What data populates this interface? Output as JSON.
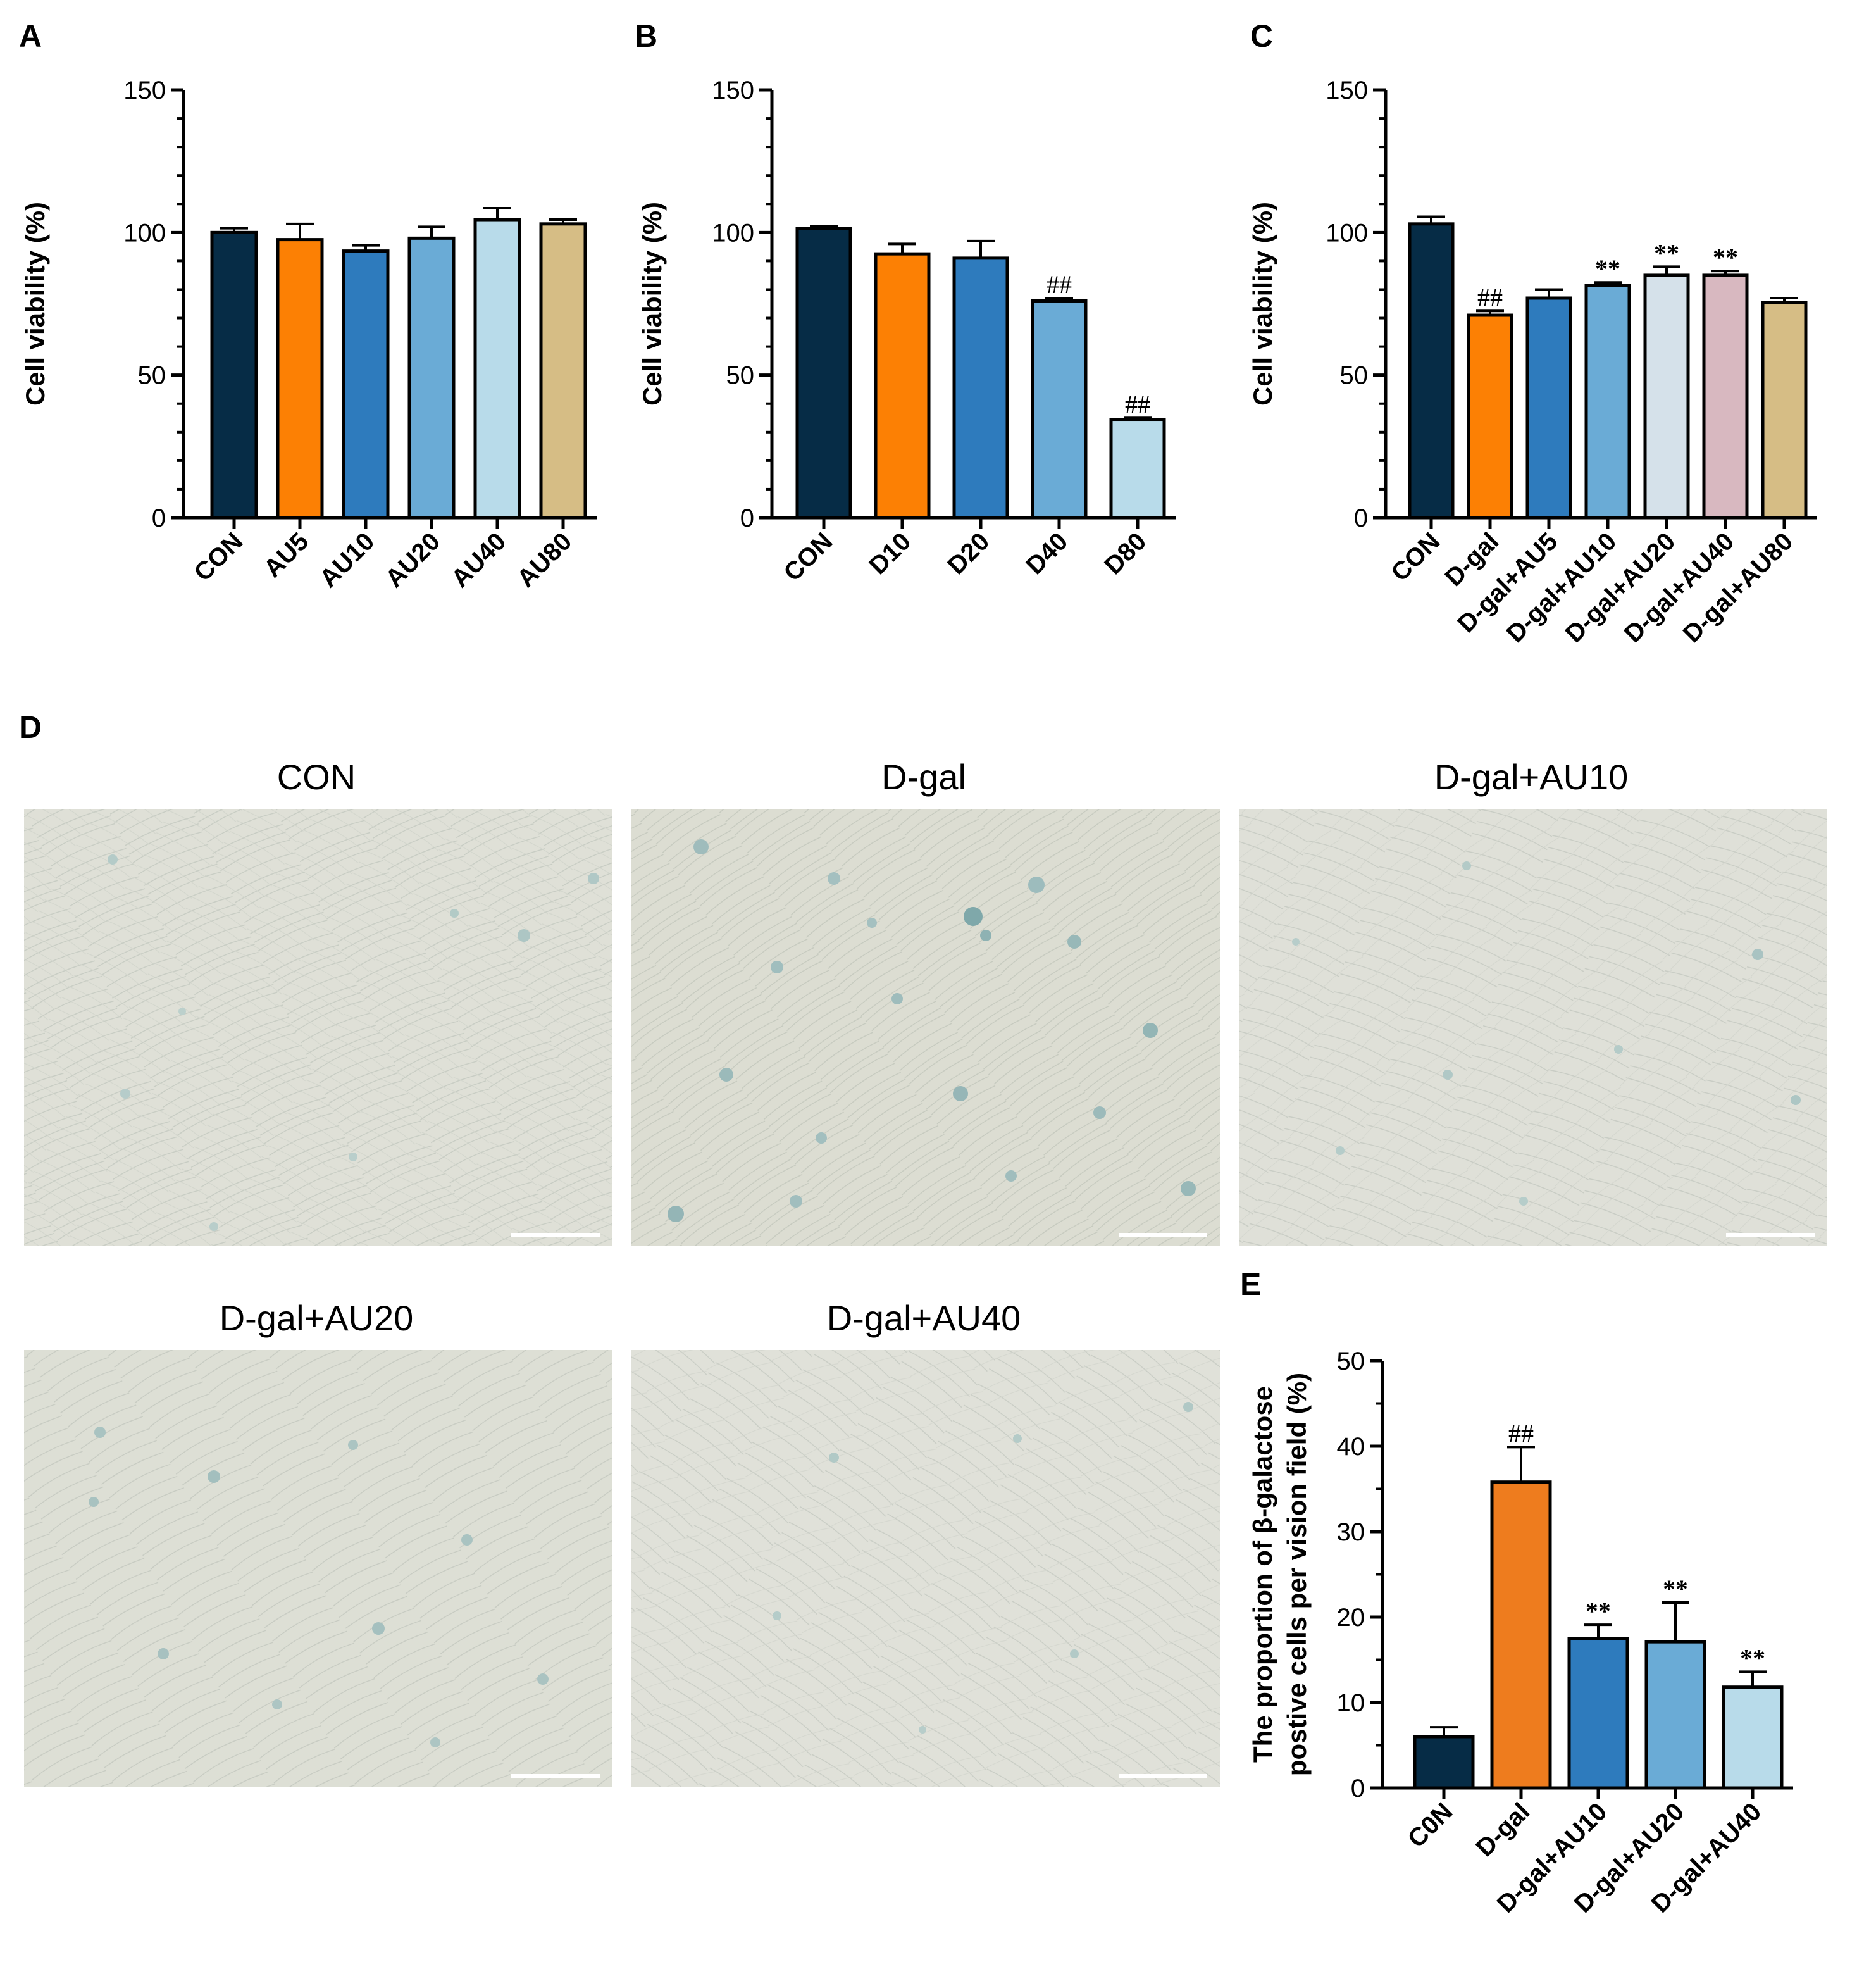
{
  "colors": {
    "navy": "#062c46",
    "orange": "#fc8004",
    "blue": "#2e7bbd",
    "midblue": "#6aabd6",
    "lightblue": "#b8dbea",
    "tan": "#d6bd85",
    "paleblue": "#d5e1ea",
    "pink": "#d8b8c0",
    "dorange": "#ee7c1e"
  },
  "panel_letters": {
    "a": "A",
    "b": "B",
    "c": "C",
    "d": "D",
    "e": "E"
  },
  "micrographs": [
    {
      "title": "CON"
    },
    {
      "title": "D-gal"
    },
    {
      "title": "D-gal+AU10"
    },
    {
      "title": "D-gal+AU20"
    },
    {
      "title": "D-gal+AU40"
    }
  ],
  "chart_data": [
    {
      "id": "A",
      "type": "bar",
      "ylabel": "Cell viability (%)",
      "ylim": [
        0,
        150
      ],
      "yticks": [
        0,
        50,
        100,
        150
      ],
      "categories": [
        "CON",
        "AU5",
        "AU10",
        "AU20",
        "AU40",
        "AU80"
      ],
      "values": [
        100,
        97.5,
        93.5,
        98,
        104.5,
        103
      ],
      "errors": [
        1.5,
        5.5,
        2,
        4,
        4,
        1.5
      ],
      "colors": [
        "#062c46",
        "#fc8004",
        "#2e7bbd",
        "#6aabd6",
        "#b8dbea",
        "#d6bd85"
      ],
      "annotations": [
        "",
        "",
        "",
        "",
        "",
        ""
      ]
    },
    {
      "id": "B",
      "type": "bar",
      "ylabel": "Cell viability (%)",
      "ylim": [
        0,
        150
      ],
      "yticks": [
        0,
        50,
        100,
        150
      ],
      "categories": [
        "CON",
        "D10",
        "D20",
        "D40",
        "D80"
      ],
      "values": [
        101.5,
        92.5,
        91,
        76,
        34.5
      ],
      "errors": [
        0.8,
        3.5,
        6,
        1,
        0.5
      ],
      "colors": [
        "#062c46",
        "#fc8004",
        "#2e7bbd",
        "#6aabd6",
        "#b8dbea"
      ],
      "annotations": [
        "",
        "",
        "",
        "##",
        "##"
      ]
    },
    {
      "id": "C",
      "type": "bar",
      "ylabel": "Cell viability (%)",
      "ylim": [
        0,
        150
      ],
      "yticks": [
        0,
        50,
        100,
        150
      ],
      "categories": [
        "CON",
        "D-gal",
        "D-gal+AU5",
        "D-gal+AU10",
        "D-gal+AU20",
        "D-gal+AU40",
        "D-gal+AU80"
      ],
      "values": [
        103,
        71,
        77,
        81.5,
        85,
        85,
        75.5
      ],
      "errors": [
        2.5,
        1.5,
        3,
        1,
        3,
        1.5,
        1.5
      ],
      "colors": [
        "#062c46",
        "#fc8004",
        "#2e7bbd",
        "#6aabd6",
        "#d5e1ea",
        "#d8b8c0",
        "#d6bd85"
      ],
      "annotations": [
        "",
        "##",
        "",
        "**",
        "**",
        "**",
        ""
      ]
    },
    {
      "id": "E",
      "type": "bar",
      "ylabel": "The proportion of β-galactose postive cells per vision field (%)",
      "ylabel_lines": [
        "The proportion of β-galactose",
        "postive cells per vision field (%)"
      ],
      "ylim": [
        0,
        50
      ],
      "yticks": [
        0,
        10,
        20,
        30,
        40,
        50
      ],
      "categories": [
        "C0N",
        "D-gal",
        "D-gal+AU10",
        "D-gal+AU20",
        "D-gal+AU40"
      ],
      "values": [
        6,
        35.8,
        17.5,
        17.1,
        11.8
      ],
      "errors": [
        1.1,
        4.1,
        1.6,
        4.6,
        1.8
      ],
      "colors": [
        "#062c46",
        "#ee7c1e",
        "#2e7bbd",
        "#6aabd6",
        "#b8dbea"
      ],
      "annotations": [
        "",
        "##",
        "**",
        "**",
        "**"
      ]
    }
  ]
}
